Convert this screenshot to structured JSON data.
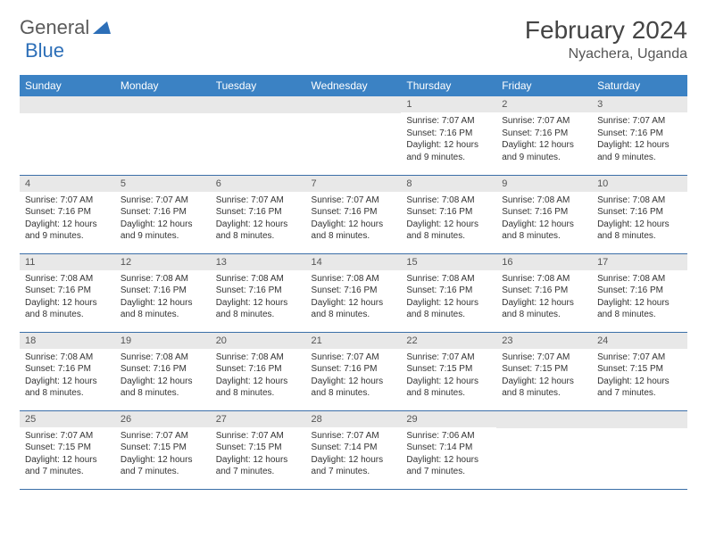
{
  "logo": {
    "text1": "General",
    "text2": "Blue"
  },
  "title": "February 2024",
  "location": "Nyachera, Uganda",
  "colors": {
    "header_bg": "#3b82c4",
    "header_text": "#ffffff",
    "daynum_bg": "#e8e8e8",
    "row_border": "#3b6fa8",
    "logo_gray": "#5a5a5a",
    "logo_blue": "#2d6fb8"
  },
  "weekdays": [
    "Sunday",
    "Monday",
    "Tuesday",
    "Wednesday",
    "Thursday",
    "Friday",
    "Saturday"
  ],
  "weeks": [
    [
      null,
      null,
      null,
      null,
      {
        "n": "1",
        "sr": "7:07 AM",
        "ss": "7:16 PM",
        "dl": "12 hours and 9 minutes."
      },
      {
        "n": "2",
        "sr": "7:07 AM",
        "ss": "7:16 PM",
        "dl": "12 hours and 9 minutes."
      },
      {
        "n": "3",
        "sr": "7:07 AM",
        "ss": "7:16 PM",
        "dl": "12 hours and 9 minutes."
      }
    ],
    [
      {
        "n": "4",
        "sr": "7:07 AM",
        "ss": "7:16 PM",
        "dl": "12 hours and 9 minutes."
      },
      {
        "n": "5",
        "sr": "7:07 AM",
        "ss": "7:16 PM",
        "dl": "12 hours and 9 minutes."
      },
      {
        "n": "6",
        "sr": "7:07 AM",
        "ss": "7:16 PM",
        "dl": "12 hours and 8 minutes."
      },
      {
        "n": "7",
        "sr": "7:07 AM",
        "ss": "7:16 PM",
        "dl": "12 hours and 8 minutes."
      },
      {
        "n": "8",
        "sr": "7:08 AM",
        "ss": "7:16 PM",
        "dl": "12 hours and 8 minutes."
      },
      {
        "n": "9",
        "sr": "7:08 AM",
        "ss": "7:16 PM",
        "dl": "12 hours and 8 minutes."
      },
      {
        "n": "10",
        "sr": "7:08 AM",
        "ss": "7:16 PM",
        "dl": "12 hours and 8 minutes."
      }
    ],
    [
      {
        "n": "11",
        "sr": "7:08 AM",
        "ss": "7:16 PM",
        "dl": "12 hours and 8 minutes."
      },
      {
        "n": "12",
        "sr": "7:08 AM",
        "ss": "7:16 PM",
        "dl": "12 hours and 8 minutes."
      },
      {
        "n": "13",
        "sr": "7:08 AM",
        "ss": "7:16 PM",
        "dl": "12 hours and 8 minutes."
      },
      {
        "n": "14",
        "sr": "7:08 AM",
        "ss": "7:16 PM",
        "dl": "12 hours and 8 minutes."
      },
      {
        "n": "15",
        "sr": "7:08 AM",
        "ss": "7:16 PM",
        "dl": "12 hours and 8 minutes."
      },
      {
        "n": "16",
        "sr": "7:08 AM",
        "ss": "7:16 PM",
        "dl": "12 hours and 8 minutes."
      },
      {
        "n": "17",
        "sr": "7:08 AM",
        "ss": "7:16 PM",
        "dl": "12 hours and 8 minutes."
      }
    ],
    [
      {
        "n": "18",
        "sr": "7:08 AM",
        "ss": "7:16 PM",
        "dl": "12 hours and 8 minutes."
      },
      {
        "n": "19",
        "sr": "7:08 AM",
        "ss": "7:16 PM",
        "dl": "12 hours and 8 minutes."
      },
      {
        "n": "20",
        "sr": "7:08 AM",
        "ss": "7:16 PM",
        "dl": "12 hours and 8 minutes."
      },
      {
        "n": "21",
        "sr": "7:07 AM",
        "ss": "7:16 PM",
        "dl": "12 hours and 8 minutes."
      },
      {
        "n": "22",
        "sr": "7:07 AM",
        "ss": "7:15 PM",
        "dl": "12 hours and 8 minutes."
      },
      {
        "n": "23",
        "sr": "7:07 AM",
        "ss": "7:15 PM",
        "dl": "12 hours and 8 minutes."
      },
      {
        "n": "24",
        "sr": "7:07 AM",
        "ss": "7:15 PM",
        "dl": "12 hours and 7 minutes."
      }
    ],
    [
      {
        "n": "25",
        "sr": "7:07 AM",
        "ss": "7:15 PM",
        "dl": "12 hours and 7 minutes."
      },
      {
        "n": "26",
        "sr": "7:07 AM",
        "ss": "7:15 PM",
        "dl": "12 hours and 7 minutes."
      },
      {
        "n": "27",
        "sr": "7:07 AM",
        "ss": "7:15 PM",
        "dl": "12 hours and 7 minutes."
      },
      {
        "n": "28",
        "sr": "7:07 AM",
        "ss": "7:14 PM",
        "dl": "12 hours and 7 minutes."
      },
      {
        "n": "29",
        "sr": "7:06 AM",
        "ss": "7:14 PM",
        "dl": "12 hours and 7 minutes."
      },
      null,
      null
    ]
  ],
  "labels": {
    "sunrise": "Sunrise: ",
    "sunset": "Sunset: ",
    "daylight": "Daylight: "
  }
}
